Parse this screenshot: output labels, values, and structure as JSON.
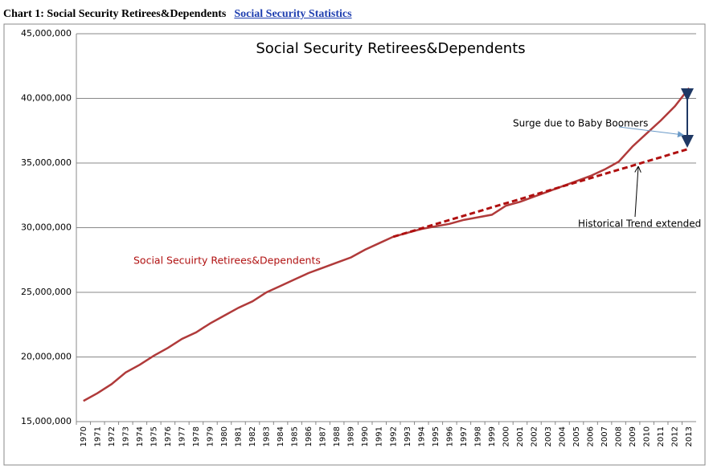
{
  "header": {
    "title": "Chart 1: Social Security Retirees&Dependents",
    "link": "Social Security Statistics"
  },
  "chart_data": {
    "type": "line",
    "title": "Social Security Retirees&Dependents",
    "categories": [
      "1970",
      "1971",
      "1972",
      "1973",
      "1974",
      "1975",
      "1976",
      "1977",
      "1978",
      "1979",
      "1980",
      "1981",
      "1982",
      "1983",
      "1984",
      "1985",
      "1986",
      "1987",
      "1988",
      "1989",
      "1990",
      "1991",
      "1992",
      "1993",
      "1994",
      "1995",
      "1996",
      "1997",
      "1998",
      "1999",
      "2000",
      "2001",
      "2002",
      "2003",
      "2004",
      "2005",
      "2006",
      "2007",
      "2008",
      "2009",
      "2010",
      "2011",
      "2012",
      "2013"
    ],
    "series": [
      {
        "name": "Social Secuirty Retirees&Dependents",
        "color": "#b03a3a",
        "dashed": false,
        "values": [
          16600000,
          17200000,
          17900000,
          18800000,
          19400000,
          20100000,
          20700000,
          21400000,
          21900000,
          22600000,
          23200000,
          23800000,
          24300000,
          25000000,
          25500000,
          26000000,
          26500000,
          26900000,
          27300000,
          27700000,
          28300000,
          28800000,
          29300000,
          29600000,
          29900000,
          30100000,
          30300000,
          30600000,
          30800000,
          31000000,
          31700000,
          32000000,
          32400000,
          32800000,
          33200000,
          33600000,
          34000000,
          34500000,
          35100000,
          36300000,
          37300000,
          38300000,
          39400000,
          40800000
        ]
      },
      {
        "name": "Historical Trend extended",
        "color": "#b01010",
        "dashed": true,
        "values": [
          null,
          null,
          null,
          null,
          null,
          null,
          null,
          null,
          null,
          null,
          null,
          null,
          null,
          null,
          null,
          null,
          null,
          null,
          null,
          null,
          null,
          null,
          29300000,
          29620000,
          29950000,
          30270000,
          30600000,
          30920000,
          31240000,
          31570000,
          31890000,
          32210000,
          32540000,
          32860000,
          33190000,
          33510000,
          33830000,
          34160000,
          34480000,
          34800000,
          35130000,
          35450000,
          35780000,
          36100000
        ]
      }
    ],
    "annotations": [
      "Surge due to Baby Boomers"
    ],
    "ylim": [
      15000000,
      45000000
    ],
    "yticks": [
      {
        "value": 15000000,
        "label": "15,000,000"
      },
      {
        "value": 20000000,
        "label": "20,000,000"
      },
      {
        "value": 25000000,
        "label": "25,000,000"
      },
      {
        "value": 30000000,
        "label": "30,000,000"
      },
      {
        "value": 35000000,
        "label": "35,000,000"
      },
      {
        "value": 40000000,
        "label": "40,000,000"
      },
      {
        "value": 45000000,
        "label": "45,000,000"
      }
    ],
    "grid": true
  }
}
